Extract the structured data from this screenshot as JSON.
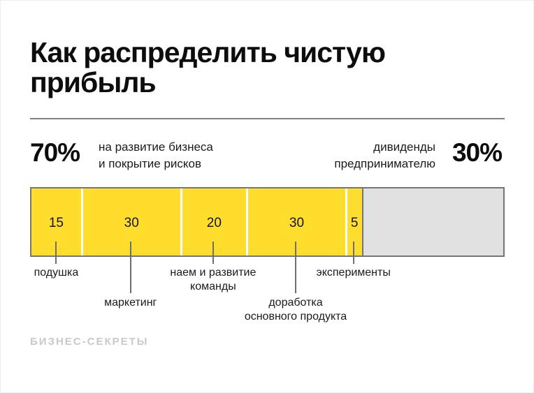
{
  "title": "Как распределить чистую прибыль",
  "title_lines": [
    "Как распределить чистую",
    "прибыль"
  ],
  "split": {
    "left_percent": "70%",
    "left_label_lines": [
      "на развитие бизнеса",
      "и покрытие рисков"
    ],
    "right_label_lines": [
      "дивиденды",
      "предпринимателю"
    ],
    "right_percent": "30%"
  },
  "chart_data": {
    "type": "bar",
    "subtype": "horizontal-stacked-100-percent",
    "title": "Как распределить чистую прибыль",
    "groups": [
      {
        "name": "на развитие бизнеса и покрытие рисков",
        "share_percent": 70,
        "color": "#ffdd2d"
      },
      {
        "name": "дивиденды предпринимателю",
        "share_percent": 30,
        "color": "#e1e1e1"
      }
    ],
    "segments": [
      {
        "value": 15,
        "label": "подушка",
        "label_lines": [
          "подушка"
        ],
        "label_row": 0
      },
      {
        "value": 30,
        "label": "маркетинг",
        "label_lines": [
          "маркетинг"
        ],
        "label_row": 1
      },
      {
        "value": 20,
        "label": "наем и развитие команды",
        "label_lines": [
          "наем и развитие",
          "команды"
        ],
        "label_row": 0
      },
      {
        "value": 30,
        "label": "доработка основного продукта",
        "label_lines": [
          "доработка",
          "основного продукта"
        ],
        "label_row": 1
      },
      {
        "value": 5,
        "label": "эксперименты",
        "label_lines": [
          "эксперименты"
        ],
        "label_row": 0
      }
    ],
    "colors": {
      "business": "#ffdd2d",
      "dividends": "#e1e1e1",
      "outline": "#757575",
      "tick": "#6e6e6e",
      "segment_divider": "#ffffff"
    }
  },
  "footer": {
    "brand": "БИЗНЕС-СЕКРЕТЫ"
  }
}
